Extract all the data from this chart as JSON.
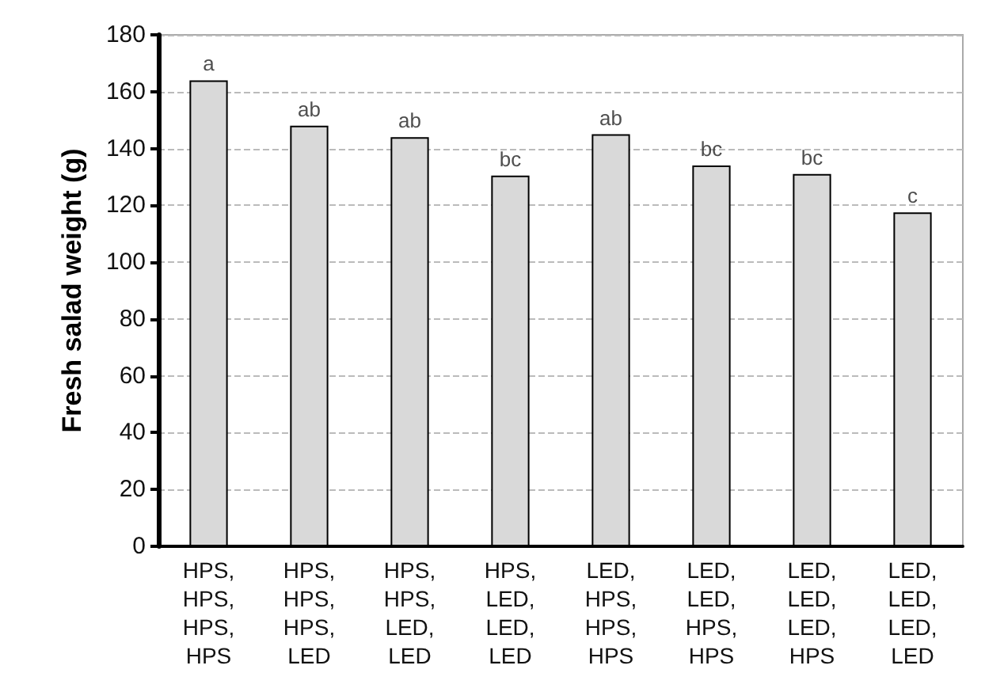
{
  "chart_data": {
    "type": "bar",
    "ylabel": "Fresh salad weight (g)",
    "categories": [
      "HPS,\nHPS,\nHPS,\nHPS",
      "HPS,\nHPS,\nHPS,\nLED",
      "HPS,\nHPS,\nLED,\nLED",
      "HPS,\nLED,\nLED,\nLED",
      "LED,\nHPS,\nHPS,\nHPS",
      "LED,\nLED,\nHPS,\nHPS",
      "LED,\nLED,\nLED,\nHPS",
      "LED,\nLED,\nLED,\nLED"
    ],
    "values": [
      164,
      148,
      144,
      130.5,
      145,
      134,
      131,
      117.5
    ],
    "color": "#d9d9d9",
    "ylim": [
      0,
      180
    ],
    "yticks": [
      0,
      20,
      40,
      60,
      80,
      100,
      120,
      140,
      160,
      180
    ],
    "grid": "y",
    "annotations": [
      {
        "text": "a",
        "x": "HPS,\nHPS,\nHPS,\nHPS",
        "y": 164
      },
      {
        "text": "ab",
        "x": "HPS,\nHPS,\nHPS,\nLED",
        "y": 148
      },
      {
        "text": "ab",
        "x": "HPS,\nHPS,\nLED,\nLED",
        "y": 144
      },
      {
        "text": "bc",
        "x": "HPS,\nLED,\nLED,\nLED",
        "y": 130.5
      },
      {
        "text": "ab",
        "x": "LED,\nHPS,\nHPS,\nHPS",
        "y": 145
      },
      {
        "text": "bc",
        "x": "LED,\nLED,\nHPS,\nHPS",
        "y": 134
      },
      {
        "text": "bc",
        "x": "LED,\nLED,\nLED,\nHPS",
        "y": 131
      },
      {
        "text": "c",
        "x": "LED,\nLED,\nLED,\nLED",
        "y": 117.5
      }
    ]
  }
}
